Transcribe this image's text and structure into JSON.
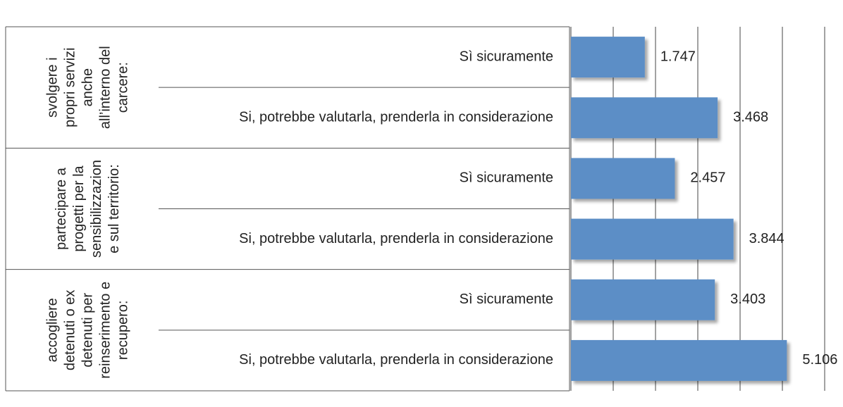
{
  "chart_data": {
    "type": "bar",
    "orientation": "horizontal",
    "groups": [
      {
        "label": [
          "svolgere i",
          "propri servizi",
          "anche",
          "all’interno del",
          "carcere:"
        ]
      },
      {
        "label": [
          "partecipare a",
          "progetti per la",
          "sensibilizzazion",
          "e sul territorio:"
        ]
      },
      {
        "label": [
          "accogliere",
          "detenuti o ex",
          "detenuti per",
          "reinserimento e",
          "recupero:"
        ]
      }
    ],
    "categories": [
      "Sì sicuramente",
      "Si, potrebbe valutarla, prenderla in considerazione",
      "Sì sicuramente",
      "Si, potrebbe valutarla, prenderla in considerazione",
      "Sì sicuramente",
      "Si, potrebbe valutarla, prenderla in considerazione"
    ],
    "values": [
      1.747,
      3.468,
      2.457,
      3.844,
      3.403,
      5.106
    ],
    "color": "#5b8ec6",
    "xlim": [
      0,
      6
    ],
    "xticks": [
      1,
      2,
      3,
      4,
      5,
      6
    ],
    "grid": true
  }
}
